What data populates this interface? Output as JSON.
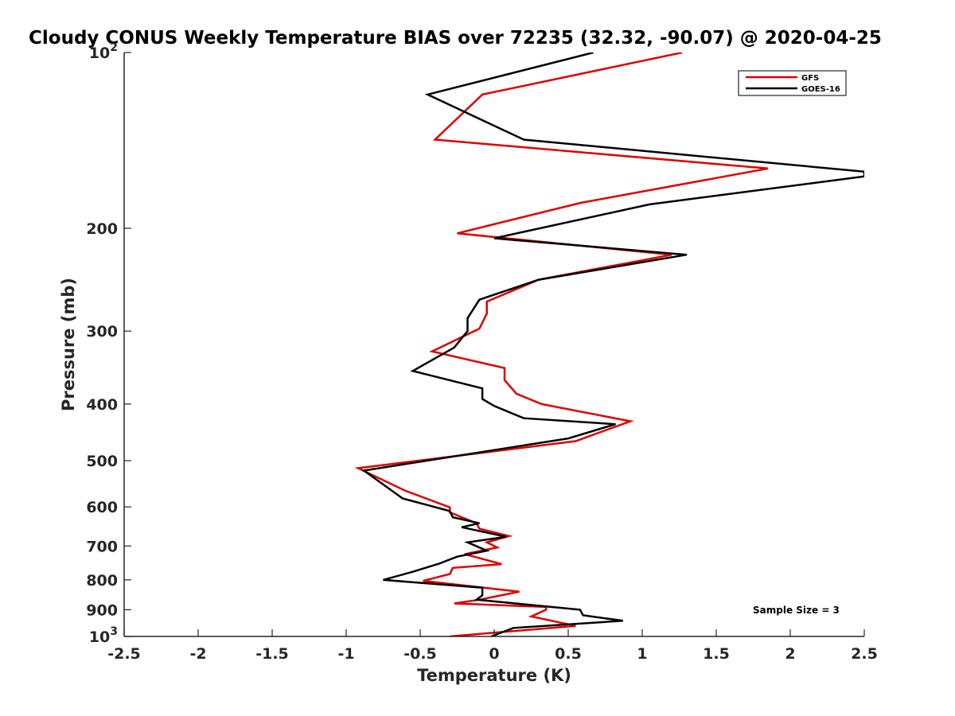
{
  "chart_data": {
    "type": "line",
    "title": "Cloudy CONUS Weekly Temperature BIAS over 72235 (32.32, -90.07) @ 2020-04-25",
    "xlabel": "Temperature (K)",
    "ylabel": "Pressure (mb)",
    "xlim": [
      -2.5,
      2.5
    ],
    "ylim": [
      100,
      1000
    ],
    "yscale": "log",
    "y_reversed": true,
    "x_ticks": [
      -2.5,
      -2,
      -1.5,
      -1,
      -0.5,
      0,
      0.5,
      1,
      1.5,
      2,
      2.5
    ],
    "x_tick_labels": [
      "-2.5",
      "-2",
      "-1.5",
      "-1",
      "-0.5",
      "0",
      "0.5",
      "1",
      "1.5",
      "2",
      "2.5"
    ],
    "y_ticks": [
      100,
      200,
      300,
      400,
      500,
      600,
      700,
      800,
      900,
      1000
    ],
    "y_tick_labels": [
      {
        "base": "10",
        "exp": "2"
      },
      {
        "base": "200",
        "exp": ""
      },
      {
        "base": "300",
        "exp": ""
      },
      {
        "base": "400",
        "exp": ""
      },
      {
        "base": "500",
        "exp": ""
      },
      {
        "base": "600",
        "exp": ""
      },
      {
        "base": "700",
        "exp": ""
      },
      {
        "base": "800",
        "exp": ""
      },
      {
        "base": "900",
        "exp": ""
      },
      {
        "base": "10",
        "exp": "3"
      }
    ],
    "legend_position": "top-right",
    "annotation": "Sample Size = 3",
    "series": [
      {
        "name": "GFS",
        "color": "#dd0000",
        "x": [
          1.27,
          -0.08,
          -0.4,
          1.85,
          0.58,
          -0.25,
          1.2,
          0.3,
          -0.05,
          -0.05,
          -0.1,
          -0.42,
          0.07,
          0.07,
          0.15,
          0.32,
          0.92,
          0.55,
          -0.92,
          -0.6,
          -0.3,
          -0.3,
          -0.12,
          -0.1,
          0.1,
          -0.05,
          0.02,
          -0.2,
          0.05,
          -0.28,
          -0.3,
          -0.48,
          0.17,
          -0.1,
          -0.27,
          0.35,
          0.35,
          0.25,
          0.55,
          -0.3
        ],
        "y": [
          100,
          118,
          141,
          158,
          181,
          204,
          222,
          245,
          267,
          280,
          297,
          325,
          347,
          364,
          384,
          400,
          428,
          463,
          515,
          563,
          601,
          613,
          640,
          654,
          673,
          690,
          704,
          723,
          752,
          763,
          782,
          803,
          838,
          865,
          878,
          890,
          900,
          924,
          959,
          1000
        ]
      },
      {
        "name": "GOES-16",
        "color": "#000000",
        "x": [
          0.67,
          -0.45,
          0.2,
          2.5,
          2.5,
          1.05,
          0.0,
          1.3,
          0.3,
          -0.1,
          -0.18,
          -0.18,
          -0.27,
          -0.55,
          -0.08,
          -0.08,
          0.0,
          0.2,
          0.82,
          0.5,
          -0.88,
          -0.62,
          -0.3,
          -0.28,
          -0.1,
          -0.22,
          0.08,
          -0.18,
          -0.05,
          -0.25,
          -0.37,
          -0.55,
          -0.75,
          -0.08,
          -0.08,
          -0.12,
          0.58,
          0.6,
          0.87,
          0.13,
          -0.02
        ],
        "y": [
          100,
          118,
          141,
          160,
          163,
          182,
          208,
          222,
          245,
          265,
          285,
          300,
          320,
          351,
          376,
          392,
          403,
          423,
          433,
          458,
          520,
          580,
          610,
          625,
          640,
          650,
          675,
          690,
          713,
          730,
          750,
          775,
          800,
          825,
          850,
          865,
          900,
          920,
          940,
          967,
          1000
        ]
      }
    ]
  }
}
